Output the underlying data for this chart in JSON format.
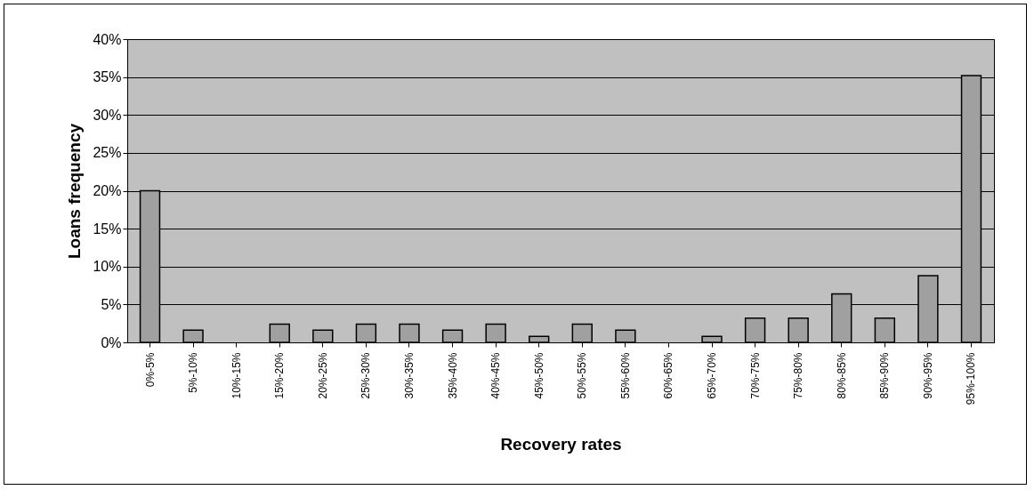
{
  "chart_data": {
    "type": "bar",
    "xlabel": "Recovery rates",
    "ylabel": "Loans frequency",
    "categories": [
      "0%-5%",
      "5%-10%",
      "10%-15%",
      "15%-20%",
      "20%-25%",
      "25%-30%",
      "30%-35%",
      "35%-40%",
      "40%-45%",
      "45%-50%",
      "50%-55%",
      "55%-60%",
      "60%-65%",
      "65%-70%",
      "70%-75%",
      "75%-80%",
      "80%-85%",
      "85%-90%",
      "90%-95%",
      "95%-100%"
    ],
    "values": [
      20,
      1.6,
      0,
      2.4,
      1.6,
      2.4,
      2.4,
      1.6,
      2.4,
      0.8,
      2.4,
      1.6,
      0,
      0.8,
      3.2,
      3.2,
      6.4,
      3.2,
      8.8,
      35.2
    ],
    "color": "#a0a0a0",
    "ylim": [
      0,
      40
    ],
    "yticks": [
      {
        "value": 0,
        "label": "0%"
      },
      {
        "value": 5,
        "label": "5%"
      },
      {
        "value": 10,
        "label": "10%"
      },
      {
        "value": 15,
        "label": "15%"
      },
      {
        "value": 20,
        "label": "20%"
      },
      {
        "value": 25,
        "label": "25%"
      },
      {
        "value": 30,
        "label": "30%"
      },
      {
        "value": 35,
        "label": "35%"
      },
      {
        "value": 40,
        "label": "40%"
      }
    ],
    "grid": "y"
  }
}
